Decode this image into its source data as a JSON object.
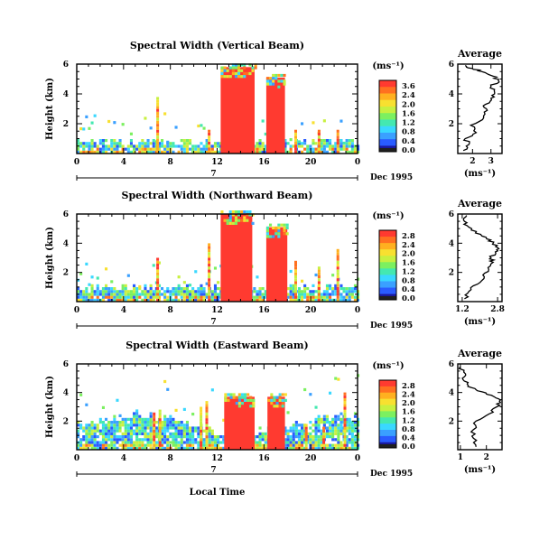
{
  "figure": {
    "xlabel": "Local Time",
    "date_label": "Dec 1995",
    "day_label": "7",
    "height_label": "Height (km)",
    "unit_label": "(ms⁻¹)",
    "colorbar_ticks": [
      "3.6",
      "2.4",
      "2.0",
      "1.6",
      "1.2",
      "0.8",
      "0.4",
      "0.0"
    ],
    "colorbar_ticks_alt": [
      "2.8",
      "2.4",
      "2.0",
      "1.6",
      "1.2",
      "0.8",
      "0.4",
      "0.0"
    ],
    "colors": [
      "#1a1aa0",
      "#2a5cff",
      "#3aa0ff",
      "#3ad8ff",
      "#44e8b0",
      "#7cf060",
      "#c8f040",
      "#f8e030",
      "#ffb020",
      "#ff7020",
      "#ff3a30"
    ]
  },
  "chart_data": [
    {
      "type": "heatmap",
      "title": "Spectral Width (Vertical Beam)",
      "xlabel": "Local Time",
      "ylabel": "Height (km)",
      "x_ticks": [
        "0",
        "4",
        "8",
        "12",
        "16",
        "20",
        "0"
      ],
      "y_ticks": [
        "6",
        "4",
        "2"
      ],
      "xlim": [
        0,
        24
      ],
      "ylim": [
        0,
        6
      ],
      "colorbar_unit": "(ms⁻¹)",
      "colorbar_ticks": [
        "3.6",
        "2.4",
        "2.0",
        "1.6",
        "1.2",
        "0.8",
        "0.4",
        "0.0"
      ],
      "date": "Dec 1995",
      "day": "7",
      "high_width_regions": [
        {
          "x_start": 12.3,
          "x_end": 15.2,
          "y_top": 5.8
        },
        {
          "x_start": 16.2,
          "x_end": 17.8,
          "y_top": 5.1
        }
      ]
    },
    {
      "type": "line",
      "title": "Average",
      "xlabel": "(ms⁻¹)",
      "ylabel": "Height (km)",
      "x_ticks": [
        "2",
        "3"
      ],
      "y_ticks": [
        "6",
        "4",
        "2"
      ],
      "xlim": [
        1.2,
        3.6
      ],
      "ylim": [
        0,
        6
      ],
      "series": [
        {
          "x": [
            1.5,
            1.8,
            1.6,
            2.2,
            1.9,
            2.6,
            2.8,
            2.7,
            3.0,
            3.2,
            3.0,
            3.4,
            3.1,
            2.5,
            2.0,
            1.6
          ],
          "y": [
            0.2,
            0.6,
            1.0,
            1.4,
            1.9,
            2.4,
            2.9,
            3.3,
            3.7,
            4.1,
            4.5,
            4.9,
            5.2,
            5.5,
            5.7,
            5.9
          ]
        }
      ]
    },
    {
      "type": "heatmap",
      "title": "Spectral Width (Northward Beam)",
      "xlabel": "Local Time",
      "ylabel": "Height (km)",
      "x_ticks": [
        "0",
        "4",
        "8",
        "12",
        "16",
        "20",
        "0"
      ],
      "y_ticks": [
        "6",
        "4",
        "2"
      ],
      "xlim": [
        0,
        24
      ],
      "ylim": [
        0,
        6
      ],
      "colorbar_unit": "(ms⁻¹)",
      "colorbar_ticks": [
        "2.8",
        "2.4",
        "2.0",
        "1.6",
        "1.2",
        "0.8",
        "0.4",
        "0.0"
      ],
      "date": "Dec 1995",
      "day": "7",
      "high_width_regions": [
        {
          "x_start": 12.3,
          "x_end": 15.0,
          "y_top": 6.0
        },
        {
          "x_start": 16.2,
          "x_end": 18.0,
          "y_top": 5.1
        }
      ]
    },
    {
      "type": "line",
      "title": "Average",
      "xlabel": "(ms⁻¹)",
      "ylabel": "Height (km)",
      "x_ticks": [
        "1.2",
        "2.8"
      ],
      "y_ticks": [
        "6",
        "4",
        "2"
      ],
      "xlim": [
        1.0,
        3.0
      ],
      "ylim": [
        0,
        6
      ],
      "series": [
        {
          "x": [
            1.3,
            1.5,
            1.9,
            2.2,
            2.4,
            2.6,
            2.5,
            2.7,
            2.8,
            2.6,
            2.3,
            1.8,
            1.5,
            1.3,
            1.4
          ],
          "y": [
            0.2,
            0.7,
            1.2,
            1.7,
            2.2,
            2.7,
            3.0,
            3.4,
            3.7,
            4.0,
            4.3,
            4.7,
            5.1,
            5.5,
            5.9
          ]
        }
      ]
    },
    {
      "type": "heatmap",
      "title": "Spectral Width (Eastward Beam)",
      "xlabel": "Local Time",
      "ylabel": "Height (km)",
      "x_ticks": [
        "0",
        "4",
        "8",
        "12",
        "16",
        "20",
        "0"
      ],
      "y_ticks": [
        "6",
        "4",
        "2"
      ],
      "xlim": [
        0,
        24
      ],
      "ylim": [
        0,
        6
      ],
      "colorbar_unit": "(ms⁻¹)",
      "colorbar_ticks": [
        "2.8",
        "2.4",
        "2.0",
        "1.6",
        "1.2",
        "0.8",
        "0.4",
        "0.0"
      ],
      "date": "Dec 1995",
      "day": "7",
      "high_width_regions": [
        {
          "x_start": 12.6,
          "x_end": 15.2,
          "y_top": 3.7
        },
        {
          "x_start": 16.3,
          "x_end": 17.8,
          "y_top": 3.7
        }
      ]
    },
    {
      "type": "line",
      "title": "Average",
      "xlabel": "(ms⁻¹)",
      "ylabel": "Height (km)",
      "x_ticks": [
        "1",
        "2"
      ],
      "y_ticks": [
        "6",
        "4",
        "2"
      ],
      "xlim": [
        0.9,
        2.6
      ],
      "ylim": [
        0,
        6
      ],
      "series": [
        {
          "x": [
            1.6,
            1.5,
            1.5,
            1.6,
            2.1,
            2.4,
            2.5,
            2.3,
            2.0,
            1.6,
            1.3,
            1.1,
            1.2,
            1.0
          ],
          "y": [
            0.2,
            0.8,
            1.4,
            2.0,
            2.5,
            3.0,
            3.4,
            3.7,
            3.9,
            4.2,
            4.5,
            4.9,
            5.3,
            5.8
          ]
        }
      ]
    }
  ]
}
